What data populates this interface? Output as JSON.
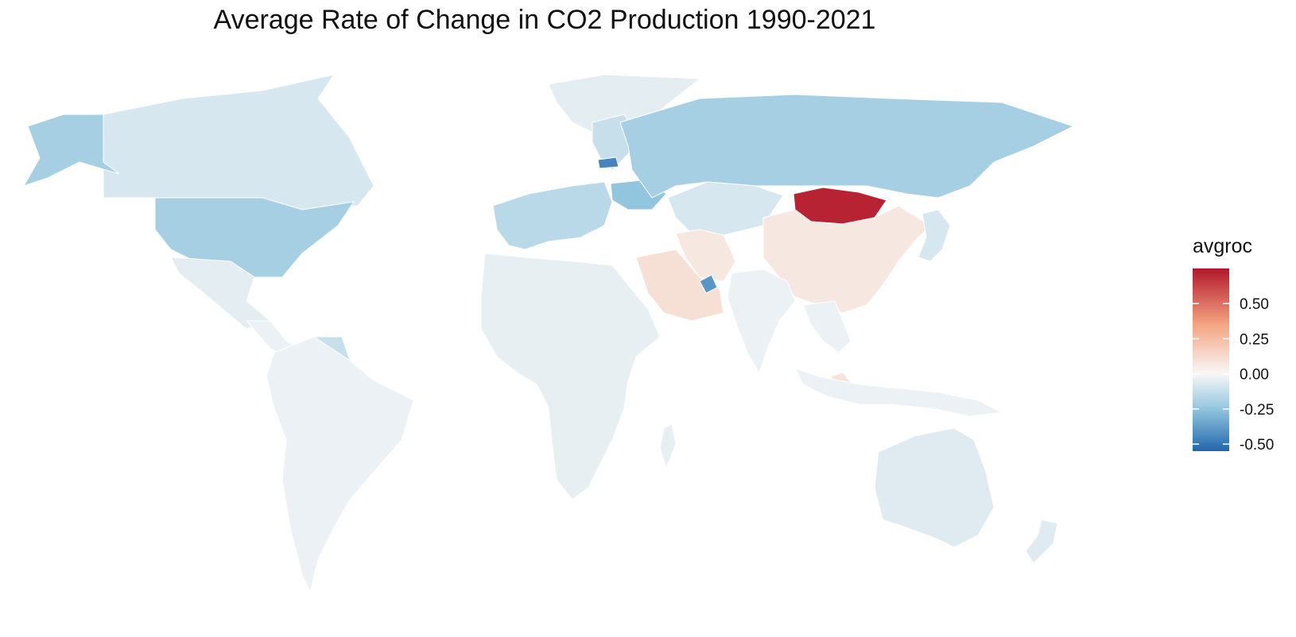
{
  "chart": {
    "title": "Average Rate of Change in CO2 Production 1990-2021"
  },
  "legend": {
    "title": "avgroc",
    "min": -0.55,
    "max": 0.75,
    "ticks": [
      {
        "value": 0.5,
        "label": "0.50"
      },
      {
        "value": 0.25,
        "label": "0.25"
      },
      {
        "value": 0.0,
        "label": "0.00"
      },
      {
        "value": -0.25,
        "label": "-0.25"
      },
      {
        "value": -0.5,
        "label": "-0.50"
      }
    ],
    "colors": {
      "high": "#b2182b",
      "mid_high": "#f4a582",
      "mid": "#f7f7f7",
      "mid_low": "#92c5de",
      "low": "#2166ac"
    }
  },
  "chart_data": {
    "type": "heatmap",
    "title": "Average Rate of Change in CO2 Production 1990-2021",
    "legend_title": "avgroc",
    "legend_placement": "right",
    "scale_range": [
      -0.55,
      0.75
    ],
    "regions": [
      {
        "name": "Canada",
        "value": -0.08
      },
      {
        "name": "United States",
        "value": -0.2
      },
      {
        "name": "Alaska",
        "value": -0.2
      },
      {
        "name": "Greenland",
        "value": -0.05
      },
      {
        "name": "Mexico",
        "value": -0.05
      },
      {
        "name": "Central America",
        "value": -0.03
      },
      {
        "name": "Venezuela",
        "value": -0.12
      },
      {
        "name": "South America",
        "value": -0.03
      },
      {
        "name": "Western Europe",
        "value": -0.15
      },
      {
        "name": "Scandinavia",
        "value": -0.12
      },
      {
        "name": "Estonia",
        "value": -0.45
      },
      {
        "name": "Ukraine",
        "value": -0.25
      },
      {
        "name": "Russia",
        "value": -0.2
      },
      {
        "name": "Kazakhstan",
        "value": -0.08
      },
      {
        "name": "Mongolia",
        "value": 0.72
      },
      {
        "name": "China",
        "value": 0.07
      },
      {
        "name": "Iran",
        "value": 0.07
      },
      {
        "name": "Saudi Arabia",
        "value": 0.1
      },
      {
        "name": "United Arab Emirates",
        "value": -0.4
      },
      {
        "name": "Africa",
        "value": -0.04
      },
      {
        "name": "India",
        "value": -0.03
      },
      {
        "name": "Southeast Asia",
        "value": -0.03
      },
      {
        "name": "Malaysia",
        "value": 0.08
      },
      {
        "name": "Indonesia",
        "value": -0.03
      },
      {
        "name": "Japan",
        "value": -0.08
      },
      {
        "name": "Australia",
        "value": -0.06
      },
      {
        "name": "New Zealand",
        "value": -0.06
      }
    ]
  }
}
